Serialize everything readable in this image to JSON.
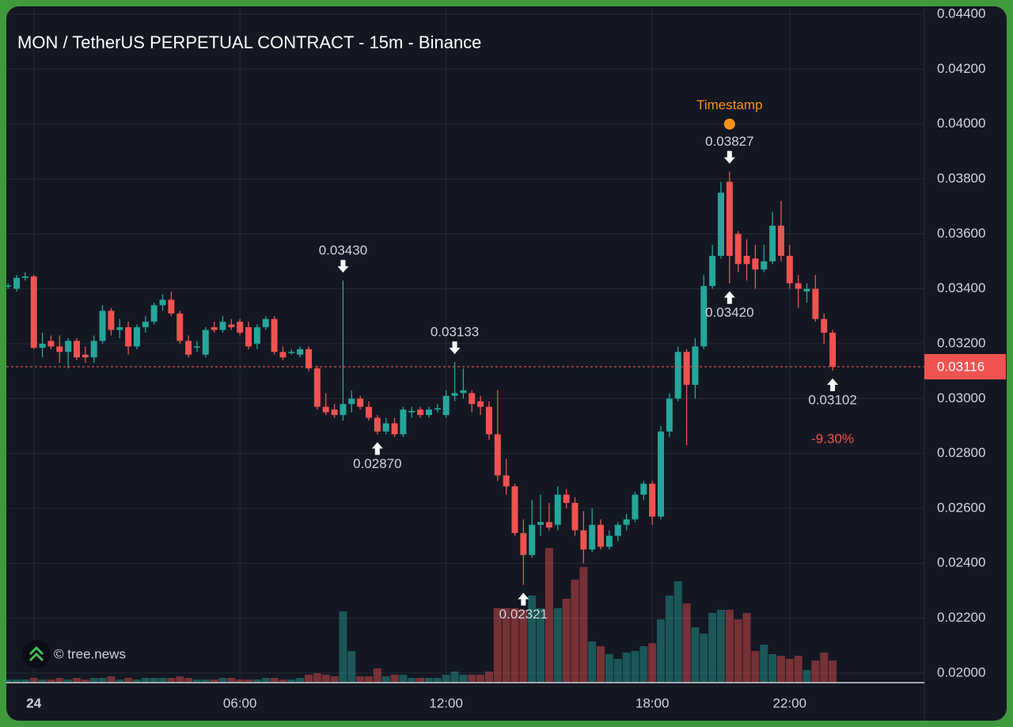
{
  "chart_data": {
    "type": "candlestick",
    "title": "MON / TetherUS PERPETUAL CONTRACT - 15m - Binance",
    "watermark": "© tree.news",
    "up_color": "#26a69a",
    "down_color": "#ef5350",
    "grid": true,
    "xlim": [
      -0.8,
      25.92
    ],
    "ylim": [
      0.01965,
      0.04429
    ],
    "volume_lim": [
      0,
      180
    ],
    "xticks": [
      {
        "value": 0,
        "label": "24"
      },
      {
        "value": 6,
        "label": "06:00"
      },
      {
        "value": 12,
        "label": "12:00"
      },
      {
        "value": 18,
        "label": "18:00"
      },
      {
        "value": 22,
        "label": "22:00"
      }
    ],
    "yticks": [
      {
        "value": 0.044,
        "label": "0.04400"
      },
      {
        "value": 0.042,
        "label": "0.04200"
      },
      {
        "value": 0.04,
        "label": "0.04000"
      },
      {
        "value": 0.038,
        "label": "0.03800"
      },
      {
        "value": 0.036,
        "label": "0.03600"
      },
      {
        "value": 0.034,
        "label": "0.03400"
      },
      {
        "value": 0.032,
        "label": "0.03200"
      },
      {
        "value": 0.03,
        "label": "0.03000"
      },
      {
        "value": 0.028,
        "label": "0.02800"
      },
      {
        "value": 0.026,
        "label": "0.02600"
      },
      {
        "value": 0.024,
        "label": "0.02400"
      },
      {
        "value": 0.022,
        "label": "0.02200"
      },
      {
        "value": 0.02,
        "label": "0.02000"
      }
    ],
    "x": [
      -0.75,
      -0.5,
      -0.25,
      0,
      0.25,
      0.5,
      0.75,
      1,
      1.25,
      1.5,
      1.75,
      2,
      2.25,
      2.5,
      2.75,
      3,
      3.25,
      3.5,
      3.75,
      4,
      4.25,
      4.5,
      4.75,
      5,
      5.25,
      5.5,
      5.75,
      6,
      6.25,
      6.5,
      6.75,
      7,
      7.25,
      7.5,
      7.75,
      8,
      8.25,
      8.5,
      8.75,
      9,
      9.25,
      9.5,
      9.75,
      10,
      10.25,
      10.5,
      10.75,
      11,
      11.25,
      11.5,
      11.75,
      12,
      12.25,
      12.5,
      12.75,
      13,
      13.25,
      13.5,
      13.75,
      14,
      14.25,
      14.5,
      14.75,
      15,
      15.25,
      15.5,
      15.75,
      16,
      16.25,
      16.5,
      16.75,
      17,
      17.25,
      17.5,
      17.75,
      18,
      18.25,
      18.5,
      18.75,
      19,
      19.25,
      19.5,
      19.75,
      20,
      20.25,
      20.5,
      20.75,
      21,
      21.25,
      21.5,
      21.75,
      22,
      22.25,
      22.5,
      22.75,
      23,
      23.25
    ],
    "open": [
      0.0341,
      0.034,
      0.0344,
      0.03445,
      0.03185,
      0.0321,
      0.0319,
      0.0317,
      0.0321,
      0.0316,
      0.0315,
      0.0321,
      0.0332,
      0.0325,
      0.0326,
      0.0319,
      0.0326,
      0.0328,
      0.0334,
      0.0336,
      0.0331,
      0.0321,
      0.0319,
      0.0316,
      0.0326,
      0.0325,
      0.0327,
      0.0328,
      0.0326,
      0.032,
      0.0326,
      0.0329,
      0.0317,
      0.0317,
      0.0316,
      0.0318,
      0.0311,
      0.0297,
      0.0296,
      0.0294,
      0.0298,
      0.03,
      0.0297,
      0.0293,
      0.0288,
      0.0291,
      0.0287,
      0.0295,
      0.0296,
      0.0294,
      0.0296,
      0.0294,
      0.0301,
      0.0302,
      0.0302,
      0.0299,
      0.0297,
      0.0287,
      0.0272,
      0.0268,
      0.0251,
      0.0243,
      0.0254,
      0.0255,
      0.0254,
      0.0265,
      0.0262,
      0.0252,
      0.0245,
      0.0254,
      0.0246,
      0.025,
      0.0254,
      0.0256,
      0.0265,
      0.0269,
      0.0257,
      0.0288,
      0.03,
      0.0317,
      0.0305,
      0.0319,
      0.0341,
      0.0352,
      0.0379,
      0.036,
      0.0352,
      0.0351,
      0.0347,
      0.035,
      0.0363,
      0.0352,
      0.0342,
      0.0339,
      0.034,
      0.0329,
      0.0324
    ],
    "high": [
      0.0342,
      0.0345,
      0.0346,
      0.0345,
      0.0324,
      0.0323,
      0.0323,
      0.0322,
      0.0322,
      0.0319,
      0.0323,
      0.0334,
      0.0333,
      0.0329,
      0.0328,
      0.0327,
      0.033,
      0.0335,
      0.0338,
      0.0339,
      0.0332,
      0.0323,
      0.0321,
      0.0326,
      0.0328,
      0.033,
      0.0329,
      0.0329,
      0.0328,
      0.0327,
      0.033,
      0.033,
      0.0319,
      0.0318,
      0.0319,
      0.0319,
      0.0312,
      0.0302,
      0.0298,
      0.0343,
      0.0303,
      0.0301,
      0.0299,
      0.0294,
      0.0293,
      0.0293,
      0.0297,
      0.0297,
      0.0297,
      0.0297,
      0.0298,
      0.0303,
      0.03133,
      0.0311,
      0.0303,
      0.0301,
      0.0299,
      0.0303,
      0.0278,
      0.0269,
      0.0256,
      0.0263,
      0.0265,
      0.0262,
      0.0268,
      0.0267,
      0.0264,
      0.0259,
      0.026,
      0.0256,
      0.0252,
      0.0255,
      0.0258,
      0.0266,
      0.027,
      0.027,
      0.029,
      0.0302,
      0.0319,
      0.0318,
      0.0322,
      0.0345,
      0.0356,
      0.0379,
      0.03827,
      0.0361,
      0.0358,
      0.0356,
      0.0356,
      0.0368,
      0.0372,
      0.0356,
      0.0345,
      0.0342,
      0.0345,
      0.0331,
      0.0325
    ],
    "low": [
      0.034,
      0.0339,
      0.0343,
      0.0318,
      0.0315,
      0.0318,
      0.0313,
      0.0311,
      0.0314,
      0.0313,
      0.0313,
      0.032,
      0.0323,
      0.0322,
      0.0316,
      0.0318,
      0.0324,
      0.0327,
      0.0332,
      0.033,
      0.032,
      0.0315,
      0.0317,
      0.0315,
      0.0324,
      0.0324,
      0.0325,
      0.0323,
      0.0318,
      0.0318,
      0.0325,
      0.0316,
      0.0314,
      0.0316,
      0.0315,
      0.031,
      0.0296,
      0.0294,
      0.0293,
      0.0292,
      0.0295,
      0.0296,
      0.0292,
      0.0287,
      0.0287,
      0.0286,
      0.0286,
      0.0293,
      0.0293,
      0.0293,
      0.0295,
      0.0293,
      0.0299,
      0.03,
      0.0295,
      0.0294,
      0.0285,
      0.027,
      0.0265,
      0.025,
      0.02321,
      0.0242,
      0.025,
      0.0252,
      0.0252,
      0.026,
      0.025,
      0.024,
      0.0244,
      0.0245,
      0.0245,
      0.0248,
      0.0252,
      0.0255,
      0.0263,
      0.0254,
      0.0256,
      0.0286,
      0.0299,
      0.0283,
      0.03,
      0.0318,
      0.034,
      0.0351,
      0.0342,
      0.0346,
      0.0343,
      0.034,
      0.0346,
      0.0349,
      0.035,
      0.034,
      0.0333,
      0.0335,
      0.0328,
      0.032,
      0.03102
    ],
    "close": [
      0.03412,
      0.0344,
      0.03445,
      0.03185,
      0.032,
      0.0319,
      0.0317,
      0.0321,
      0.0315,
      0.0315,
      0.0321,
      0.0332,
      0.0325,
      0.0326,
      0.0319,
      0.0326,
      0.0328,
      0.0334,
      0.0336,
      0.0331,
      0.0321,
      0.0316,
      0.0319,
      0.0325,
      0.0325,
      0.0328,
      0.0326,
      0.0324,
      0.0319,
      0.0326,
      0.0329,
      0.0317,
      0.0315,
      0.0317,
      0.0318,
      0.0311,
      0.0297,
      0.0295,
      0.0294,
      0.0298,
      0.03,
      0.0297,
      0.0293,
      0.0288,
      0.0291,
      0.0287,
      0.0296,
      0.02955,
      0.0294,
      0.0296,
      0.02965,
      0.0301,
      0.0302,
      0.0303,
      0.0298,
      0.0297,
      0.0287,
      0.0272,
      0.0268,
      0.0251,
      0.0243,
      0.0254,
      0.0255,
      0.0253,
      0.0265,
      0.0262,
      0.0252,
      0.0245,
      0.0254,
      0.0246,
      0.025,
      0.0254,
      0.0256,
      0.0265,
      0.0269,
      0.0257,
      0.0288,
      0.03,
      0.0317,
      0.0305,
      0.0319,
      0.0341,
      0.0352,
      0.0375,
      0.0352,
      0.0349,
      0.0349,
      0.0347,
      0.035,
      0.0363,
      0.0352,
      0.0342,
      0.034,
      0.034,
      0.0329,
      0.0324,
      0.03116
    ],
    "volume": [
      4,
      4,
      4,
      6,
      4,
      4,
      6,
      4,
      6,
      4,
      6,
      6,
      8,
      4,
      6,
      4,
      6,
      6,
      6,
      6,
      8,
      6,
      4,
      4,
      4,
      6,
      6,
      4,
      4,
      4,
      6,
      6,
      4,
      4,
      6,
      10,
      12,
      10,
      8,
      90,
      40,
      8,
      8,
      18,
      8,
      10,
      10,
      6,
      6,
      6,
      6,
      10,
      14,
      10,
      10,
      10,
      14,
      94,
      94,
      94,
      92,
      110,
      94,
      170,
      94,
      106,
      130,
      146,
      52,
      46,
      36,
      30,
      38,
      40,
      46,
      50,
      80,
      110,
      128,
      100,
      70,
      62,
      88,
      92,
      92,
      80,
      88,
      40,
      48,
      36,
      34,
      30,
      34,
      16,
      28,
      38,
      28
    ],
    "annotations": [
      {
        "label": "0.03430",
        "value": 0.0343,
        "x": 9,
        "side": "above"
      },
      {
        "label": "0.02870",
        "value": 0.0287,
        "x": 10,
        "side": "below"
      },
      {
        "label": "0.03133",
        "value": 0.03133,
        "x": 12.25,
        "side": "above"
      },
      {
        "label": "0.02321",
        "value": 0.02321,
        "x": 14.25,
        "side": "below"
      },
      {
        "label": "0.03827",
        "value": 0.03827,
        "x": 20.25,
        "side": "above"
      },
      {
        "label": "0.03420",
        "value": 0.0342,
        "x": 20.25,
        "side": "below"
      },
      {
        "label": "0.03102",
        "value": 0.03102,
        "x": 23.25,
        "side": "below"
      }
    ],
    "marker": {
      "label": "Timestamp",
      "x": 20.25,
      "value": 0.04,
      "color": "#f7931a"
    },
    "last_price": {
      "value": 0.03116,
      "label": "0.03116"
    },
    "change": {
      "value": -9.3,
      "label": "-9.30%"
    }
  }
}
